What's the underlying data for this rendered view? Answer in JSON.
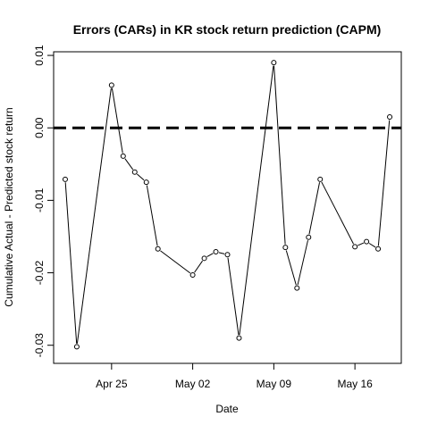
{
  "chart_data": {
    "type": "line",
    "title": "Errors (CARs) in KR stock return prediction (CAPM)",
    "xlabel": "Date",
    "ylabel": "Cumulative Actual - Predicted stock return",
    "x_ticks": [
      {
        "label": "Apr 25",
        "date": "2016-04-25"
      },
      {
        "label": "May 02",
        "date": "2016-05-02"
      },
      {
        "label": "May 09",
        "date": "2016-05-09"
      },
      {
        "label": "May 16",
        "date": "2016-05-16"
      }
    ],
    "y_ticks": [
      "-0.03",
      "-0.02",
      "-0.01",
      "0.00",
      "0.01"
    ],
    "xlim": [
      "2016-04-20",
      "2016-05-20"
    ],
    "ylim": [
      -0.0325,
      0.0105
    ],
    "reference_line": {
      "y": 0,
      "style": "dashed"
    },
    "grid": false,
    "series": [
      {
        "points": [
          {
            "x": "2016-04-21",
            "y": -0.0071
          },
          {
            "x": "2016-04-22",
            "y": -0.0302
          },
          {
            "x": "2016-04-25",
            "y": 0.0059
          },
          {
            "x": "2016-04-26",
            "y": -0.0039
          },
          {
            "x": "2016-04-27",
            "y": -0.0061
          },
          {
            "x": "2016-04-28",
            "y": -0.0075
          },
          {
            "x": "2016-04-29",
            "y": -0.0167
          },
          {
            "x": "2016-05-02",
            "y": -0.0203
          },
          {
            "x": "2016-05-03",
            "y": -0.018
          },
          {
            "x": "2016-05-04",
            "y": -0.0171
          },
          {
            "x": "2016-05-05",
            "y": -0.0175
          },
          {
            "x": "2016-05-06",
            "y": -0.029
          },
          {
            "x": "2016-05-09",
            "y": 0.009
          },
          {
            "x": "2016-05-10",
            "y": -0.0165
          },
          {
            "x": "2016-05-11",
            "y": -0.0221
          },
          {
            "x": "2016-05-12",
            "y": -0.0151
          },
          {
            "x": "2016-05-13",
            "y": -0.0071
          },
          {
            "x": "2016-05-16",
            "y": -0.0164
          },
          {
            "x": "2016-05-17",
            "y": -0.0157
          },
          {
            "x": "2016-05-18",
            "y": -0.0167
          },
          {
            "x": "2016-05-19",
            "y": 0.0015
          }
        ]
      }
    ]
  }
}
